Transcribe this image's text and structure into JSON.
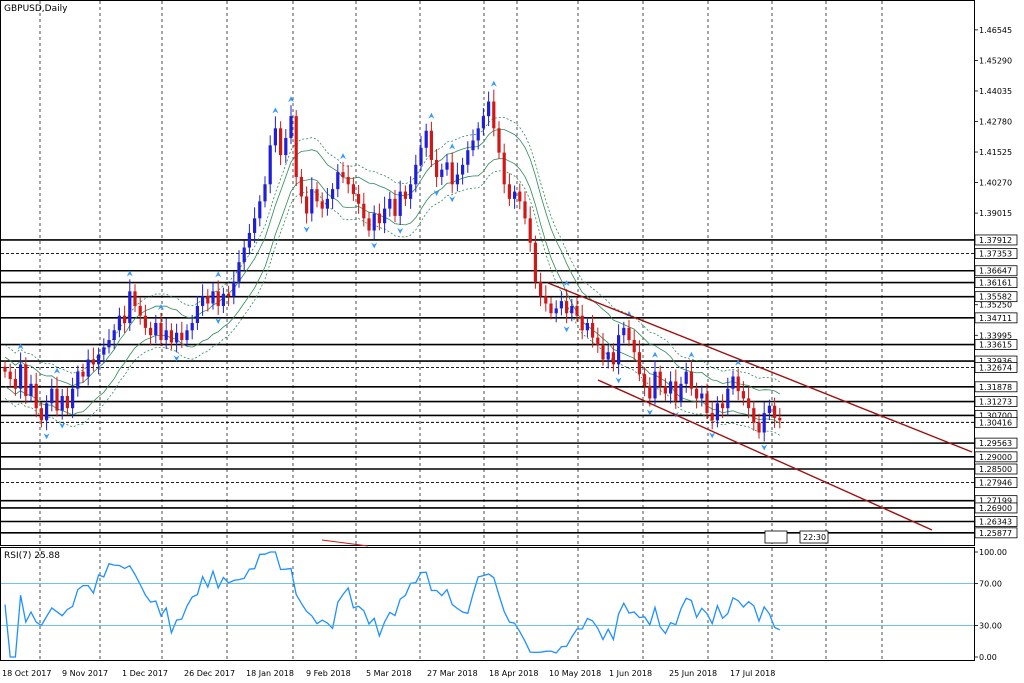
{
  "window_title": "GBPUSD,Daily",
  "rsi_label": "RSI(7) 25.88",
  "clock_label": "22:30",
  "colors": {
    "bull": "#1f1fd8",
    "bear": "#d01818",
    "band": "#2e8b57",
    "channel": "#a01010",
    "rsi": "#1e90ff",
    "rsi_level": "#3fb0e0",
    "fractal": "#3399ff",
    "grid": "#000000"
  },
  "chart_data": [
    {
      "type": "candlestick",
      "symbol": "GBPUSD",
      "timeframe": "Daily",
      "ylim": [
        1.2587,
        1.4654
      ],
      "y_ticks": [
        "1.46545",
        "1.45290",
        "1.44035",
        "1.42780",
        "1.41525",
        "1.40270",
        "1.39015",
        "1.37912",
        "1.37353",
        "1.36647",
        "1.36161",
        "1.35582",
        "1.35250",
        "1.34711",
        "1.33995",
        "1.33615",
        "1.32936",
        "1.32674",
        "1.31878",
        "1.31273",
        "1.30700",
        "1.30416",
        "1.29563",
        "1.29000",
        "1.28500",
        "1.27946",
        "1.27199",
        "1.26900",
        "1.26343",
        "1.25877"
      ],
      "x_ticks": [
        "18 Oct 2017",
        "9 Nov 2017",
        "1 Dec 2017",
        "26 Dec 2017",
        "18 Jan 2018",
        "9 Feb 2018",
        "5 Mar 2018",
        "27 Mar 2018",
        "18 Apr 2018",
        "10 May 2018",
        "1 Jun 2018",
        "25 Jun 2018",
        "17 Jul 2018"
      ],
      "horizontal_levels": [
        "1.37912",
        "1.37353",
        "1.36647",
        "1.36161",
        "1.35582",
        "1.34711",
        "1.33615",
        "1.32936",
        "1.32674",
        "1.31878",
        "1.31273",
        "1.30700",
        "1.30416",
        "1.29563",
        "1.29000",
        "1.28500",
        "1.27946",
        "1.27199",
        "1.26900",
        "1.26343",
        "1.25877"
      ],
      "dashed_levels": [
        "1.37353",
        "1.32674",
        "1.30416",
        "1.27946"
      ],
      "closes": [
        1.325,
        1.322,
        1.318,
        1.328,
        1.315,
        1.32,
        1.31,
        1.305,
        1.312,
        1.318,
        1.309,
        1.315,
        1.31,
        1.318,
        1.325,
        1.323,
        1.33,
        1.328,
        1.332,
        1.335,
        1.338,
        1.342,
        1.348,
        1.345,
        1.358,
        1.352,
        1.348,
        1.343,
        1.34,
        1.345,
        1.338,
        1.342,
        1.337,
        1.341,
        1.338,
        1.342,
        1.345,
        1.352,
        1.356,
        1.353,
        1.358,
        1.352,
        1.357,
        1.356,
        1.362,
        1.37,
        1.376,
        1.382,
        1.388,
        1.395,
        1.402,
        1.418,
        1.425,
        1.414,
        1.421,
        1.43,
        1.405,
        1.397,
        1.39,
        1.4,
        1.395,
        1.392,
        1.396,
        1.4,
        1.407,
        1.405,
        1.402,
        1.398,
        1.394,
        1.388,
        1.383,
        1.39,
        1.386,
        1.392,
        1.396,
        1.389,
        1.399,
        1.396,
        1.402,
        1.41,
        1.417,
        1.424,
        1.412,
        1.405,
        1.408,
        1.411,
        1.402,
        1.406,
        1.41,
        1.416,
        1.42,
        1.425,
        1.43,
        1.436,
        1.425,
        1.415,
        1.402,
        1.396,
        1.399,
        1.395,
        1.388,
        1.378,
        1.362,
        1.356,
        1.353,
        1.349,
        1.351,
        1.354,
        1.349,
        1.352,
        1.348,
        1.342,
        1.345,
        1.339,
        1.336,
        1.33,
        1.333,
        1.328,
        1.34,
        1.343,
        1.338,
        1.333,
        1.324,
        1.319,
        1.314,
        1.325,
        1.319,
        1.316,
        1.321,
        1.313,
        1.32,
        1.325,
        1.318,
        1.314,
        1.316,
        1.308,
        1.305,
        1.312,
        1.31,
        1.318,
        1.323,
        1.317,
        1.314,
        1.31,
        1.304,
        1.3,
        1.308,
        1.311,
        1.306,
        1.305
      ]
    },
    {
      "type": "line",
      "name": "RSI(7)",
      "last_value": 25.88,
      "ylim": [
        0,
        100
      ],
      "y_ticks": [
        "100.00",
        "70.00",
        "30.00",
        "0.00"
      ],
      "levels": [
        70,
        30
      ]
    }
  ]
}
